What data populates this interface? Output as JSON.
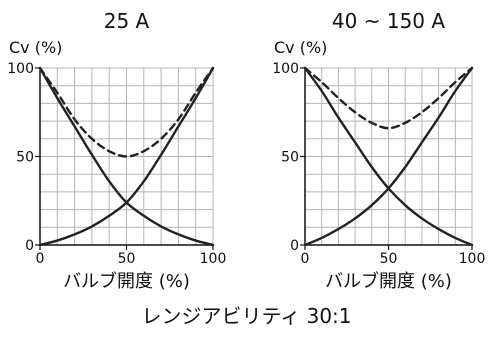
{
  "caption": "レンジアビリティ 30:1",
  "chart_data": [
    {
      "type": "line",
      "title": "25 A",
      "ylabel": "Cv (%)",
      "xlabel": "バルブ開度 (%)",
      "xlim": [
        0,
        100
      ],
      "ylim": [
        0,
        100
      ],
      "grid": true,
      "x_ticks": [
        0,
        50,
        100
      ],
      "y_ticks": [
        0,
        50,
        100
      ],
      "x": [
        0,
        10,
        20,
        30,
        40,
        50,
        60,
        70,
        80,
        90,
        100
      ],
      "series": [
        {
          "values": [
            0,
            2.5,
            6,
            10.5,
            16.5,
            24,
            36,
            51,
            67,
            83,
            100
          ],
          "dashed": false
        },
        {
          "values": [
            100,
            83,
            67,
            51,
            36,
            24,
            16.5,
            10.5,
            6,
            2.5,
            0
          ],
          "dashed": false
        },
        {
          "values": [
            100,
            86,
            71,
            60,
            53,
            50,
            53,
            60,
            71,
            86,
            100
          ],
          "dashed": true
        }
      ]
    },
    {
      "type": "line",
      "title": "40 ~ 150 A",
      "ylabel": "Cv (%)",
      "xlabel": "バルブ開度 (%)",
      "xlim": [
        0,
        100
      ],
      "ylim": [
        0,
        100
      ],
      "grid": true,
      "x_ticks": [
        0,
        50,
        100
      ],
      "y_ticks": [
        0,
        50,
        100
      ],
      "x": [
        0,
        10,
        20,
        30,
        40,
        50,
        60,
        70,
        80,
        90,
        100
      ],
      "series": [
        {
          "values": [
            0,
            4,
            9,
            15,
            22.5,
            32,
            44,
            58,
            72,
            87,
            100
          ],
          "dashed": false
        },
        {
          "values": [
            100,
            87,
            72,
            58,
            44,
            32,
            22.5,
            15,
            9,
            4,
            0
          ],
          "dashed": false
        },
        {
          "values": [
            100,
            92,
            83,
            75,
            69,
            66,
            69,
            75,
            83,
            92,
            100
          ],
          "dashed": true
        }
      ]
    }
  ]
}
